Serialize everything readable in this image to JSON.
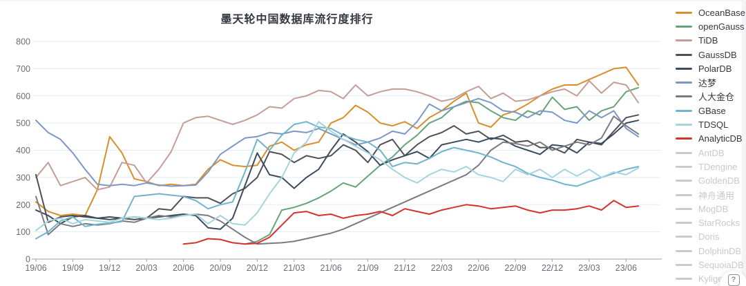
{
  "chart_data": {
    "type": "line",
    "title": "墨天轮中国数据库流行度排行",
    "xlabel": "",
    "ylabel": "",
    "ylim": [
      0,
      800
    ],
    "y_ticks": [
      0,
      100,
      200,
      300,
      400,
      500,
      600,
      700,
      800
    ],
    "grid": true,
    "legend_position": "right",
    "x_tick_interval": 3,
    "x_tick_labels": [
      "19/06",
      "19/09",
      "19/12",
      "20/03",
      "20/06",
      "20/09",
      "20/12",
      "21/03",
      "21/06",
      "21/09",
      "21/12",
      "22/03",
      "22/06",
      "22/09",
      "22/12",
      "23/03",
      "23/06"
    ],
    "categories": [
      "19/06",
      "19/07",
      "19/08",
      "19/09",
      "19/10",
      "19/11",
      "19/12",
      "20/01",
      "20/02",
      "20/03",
      "20/04",
      "20/05",
      "20/06",
      "20/07",
      "20/08",
      "20/09",
      "20/10",
      "20/11",
      "20/12",
      "21/01",
      "21/02",
      "21/03",
      "21/04",
      "21/05",
      "21/06",
      "21/07",
      "21/08",
      "21/09",
      "21/10",
      "21/11",
      "21/12",
      "22/01",
      "22/02",
      "22/03",
      "22/04",
      "22/05",
      "22/06",
      "22/07",
      "22/08",
      "22/09",
      "22/10",
      "22/11",
      "22/12",
      "23/01",
      "23/02",
      "23/03",
      "23/04",
      "23/05",
      "23/06",
      "23/07"
    ],
    "series": [
      {
        "name": "OceanBase",
        "color": "#d98d2b",
        "values": [
          210,
          175,
          160,
          165,
          160,
          255,
          450,
          390,
          295,
          285,
          270,
          275,
          270,
          275,
          330,
          365,
          345,
          340,
          345,
          415,
          430,
          400,
          420,
          430,
          500,
          520,
          565,
          540,
          500,
          490,
          505,
          480,
          520,
          545,
          580,
          610,
          500,
          485,
          530,
          545,
          570,
          600,
          625,
          640,
          640,
          660,
          680,
          700,
          705,
          640
        ]
      },
      {
        "name": "openGauss",
        "color": "#65a479",
        "values": [
          null,
          null,
          null,
          null,
          null,
          null,
          null,
          null,
          null,
          null,
          null,
          null,
          null,
          null,
          null,
          null,
          null,
          55,
          65,
          90,
          180,
          190,
          205,
          225,
          250,
          280,
          265,
          305,
          345,
          375,
          420,
          455,
          500,
          520,
          560,
          580,
          575,
          545,
          520,
          510,
          545,
          530,
          595,
          550,
          560,
          510,
          545,
          560,
          615,
          630
        ]
      },
      {
        "name": "TiDB",
        "color": "#c69c96",
        "values": [
          300,
          355,
          270,
          285,
          300,
          255,
          265,
          355,
          345,
          280,
          330,
          395,
          500,
          520,
          525,
          510,
          495,
          510,
          530,
          560,
          555,
          590,
          600,
          620,
          615,
          590,
          640,
          600,
          615,
          625,
          625,
          615,
          600,
          580,
          590,
          615,
          635,
          590,
          610,
          580,
          585,
          600,
          615,
          625,
          600,
          655,
          610,
          650,
          640,
          575
        ]
      },
      {
        "name": "GaussDB",
        "color": "#4e5055",
        "values": [
          310,
          135,
          155,
          160,
          155,
          150,
          145,
          150,
          145,
          150,
          185,
          180,
          230,
          225,
          225,
          205,
          240,
          260,
          300,
          395,
          385,
          355,
          380,
          370,
          380,
          420,
          400,
          355,
          420,
          440,
          380,
          420,
          450,
          465,
          490,
          460,
          470,
          440,
          455,
          430,
          435,
          410,
          410,
          390,
          440,
          430,
          420,
          470,
          520,
          530
        ]
      },
      {
        "name": "PolarDB",
        "color": "#3c4a5c",
        "values": [
          180,
          160,
          130,
          155,
          160,
          150,
          155,
          150,
          155,
          150,
          155,
          160,
          165,
          160,
          115,
          110,
          150,
          270,
          390,
          310,
          300,
          260,
          300,
          330,
          400,
          460,
          430,
          395,
          345,
          365,
          380,
          395,
          370,
          420,
          430,
          440,
          430,
          445,
          440,
          415,
          400,
          385,
          420,
          415,
          390,
          430,
          425,
          460,
          500,
          510
        ]
      },
      {
        "name": "达梦",
        "color": "#7b97c6",
        "values": [
          510,
          465,
          440,
          390,
          330,
          275,
          270,
          275,
          270,
          280,
          272,
          268,
          270,
          272,
          320,
          385,
          415,
          445,
          450,
          465,
          460,
          470,
          465,
          480,
          460,
          440,
          420,
          430,
          445,
          470,
          460,
          505,
          570,
          545,
          560,
          575,
          590,
          575,
          545,
          540,
          520,
          545,
          540,
          510,
          500,
          545,
          520,
          545,
          480,
          450
        ]
      },
      {
        "name": "人大金仓",
        "color": "#7a7a80",
        "values": [
          230,
          90,
          130,
          120,
          130,
          125,
          130,
          140,
          135,
          150,
          160,
          155,
          160,
          165,
          160,
          140,
          110,
          80,
          55,
          58,
          60,
          65,
          75,
          85,
          95,
          110,
          130,
          150,
          170,
          190,
          210,
          230,
          250,
          270,
          290,
          310,
          345,
          400,
          430,
          425,
          415,
          430,
          400,
          415,
          430,
          420,
          445,
          525,
          490,
          460
        ]
      },
      {
        "name": "GBase",
        "color": "#6fb3cd",
        "values": [
          75,
          100,
          140,
          155,
          120,
          128,
          132,
          138,
          230,
          235,
          240,
          235,
          230,
          215,
          185,
          200,
          210,
          320,
          440,
          400,
          455,
          495,
          505,
          485,
          480,
          455,
          440,
          430,
          400,
          340,
          355,
          350,
          370,
          395,
          410,
          400,
          390,
          375,
          355,
          340,
          315,
          300,
          290,
          275,
          268,
          285,
          300,
          315,
          330,
          340
        ]
      },
      {
        "name": "TDSQL",
        "color": "#a6d4dc",
        "values": [
          105,
          140,
          150,
          130,
          145,
          140,
          135,
          150,
          155,
          150,
          145,
          150,
          160,
          165,
          130,
          160,
          130,
          125,
          170,
          240,
          300,
          390,
          430,
          505,
          470,
          440,
          415,
          390,
          365,
          330,
          300,
          280,
          310,
          330,
          320,
          340,
          310,
          300,
          285,
          330,
          310,
          330,
          300,
          330,
          305,
          330,
          300,
          320,
          310,
          335
        ]
      },
      {
        "name": "AnalyticDB",
        "color": "#d5312d",
        "values": [
          null,
          null,
          null,
          null,
          null,
          null,
          null,
          null,
          null,
          null,
          null,
          null,
          55,
          60,
          75,
          72,
          60,
          55,
          58,
          80,
          125,
          170,
          175,
          160,
          165,
          150,
          160,
          165,
          175,
          160,
          185,
          175,
          165,
          180,
          190,
          200,
          195,
          185,
          190,
          195,
          180,
          170,
          180,
          180,
          185,
          195,
          180,
          215,
          190,
          195
        ]
      }
    ]
  },
  "legend": {
    "inactive_color": "#cacace",
    "items": [
      {
        "label": "OceanBase",
        "color": "#d98d2b",
        "active": true
      },
      {
        "label": "openGauss",
        "color": "#65a479",
        "active": true
      },
      {
        "label": "TiDB",
        "color": "#c69c96",
        "active": true
      },
      {
        "label": "GaussDB",
        "color": "#4e5055",
        "active": true
      },
      {
        "label": "PolarDB",
        "color": "#3c4a5c",
        "active": true
      },
      {
        "label": "达梦",
        "color": "#7b97c6",
        "active": true
      },
      {
        "label": "人大金仓",
        "color": "#7a7a80",
        "active": true
      },
      {
        "label": "GBase",
        "color": "#6fb3cd",
        "active": true
      },
      {
        "label": "TDSQL",
        "color": "#a6d4dc",
        "active": true
      },
      {
        "label": "AnalyticDB",
        "color": "#d5312d",
        "active": true
      },
      {
        "label": "AntDB",
        "color": "#cacace",
        "active": false
      },
      {
        "label": "TDengine",
        "color": "#cacace",
        "active": false
      },
      {
        "label": "GoldenDB",
        "color": "#cacace",
        "active": false
      },
      {
        "label": "神舟通用",
        "color": "#cacace",
        "active": false
      },
      {
        "label": "MogDB",
        "color": "#cacace",
        "active": false
      },
      {
        "label": "StarRocks",
        "color": "#cacace",
        "active": false
      },
      {
        "label": "Doris",
        "color": "#cacace",
        "active": false
      },
      {
        "label": "DolphinDB",
        "color": "#cacace",
        "active": false
      },
      {
        "label": "SequoiaDB",
        "color": "#cacace",
        "active": false
      },
      {
        "label": "Kyligence",
        "color": "#cacace",
        "active": false
      }
    ]
  },
  "colors": {
    "grid": "#e4ecf4",
    "axis": "#98a0a8",
    "tick_text": "#666e78",
    "title_text": "#333740"
  },
  "help_button": {
    "glyph": "?"
  }
}
